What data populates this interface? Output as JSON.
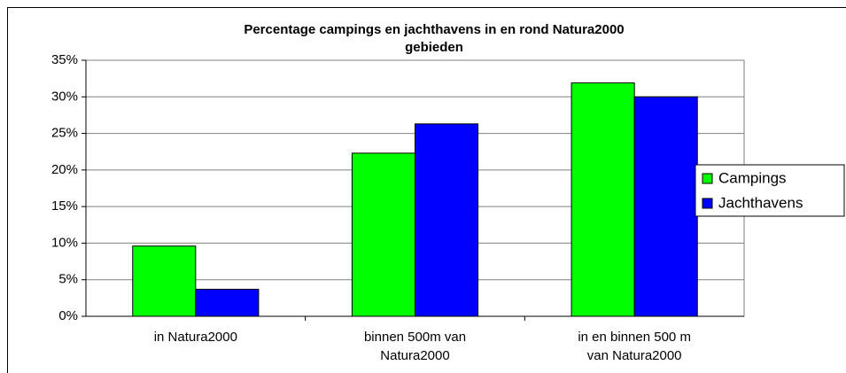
{
  "chart_data": {
    "type": "bar",
    "title": "Percentage campings en jachthavens in en rond Natura2000\ngebieden",
    "categories": [
      "in Natura2000",
      "binnen 500m van\nNatura2000",
      "in en binnen 500 m\nvan Natura2000"
    ],
    "series": [
      {
        "name": "Campings",
        "color": "#00ff00",
        "values": [
          9.6,
          22.3,
          31.9
        ]
      },
      {
        "name": "Jachthavens",
        "color": "#0000ff",
        "values": [
          3.7,
          26.3,
          30.0
        ]
      }
    ],
    "ylim": [
      0,
      35
    ],
    "yticks": [
      {
        "value": 0,
        "label": "0%"
      },
      {
        "value": 5,
        "label": "5%"
      },
      {
        "value": 10,
        "label": "10%"
      },
      {
        "value": 15,
        "label": "15%"
      },
      {
        "value": 20,
        "label": "20%"
      },
      {
        "value": 25,
        "label": "25%"
      },
      {
        "value": 30,
        "label": "30%"
      },
      {
        "value": 35,
        "label": "35%"
      }
    ],
    "grid": true,
    "legend": "right"
  }
}
